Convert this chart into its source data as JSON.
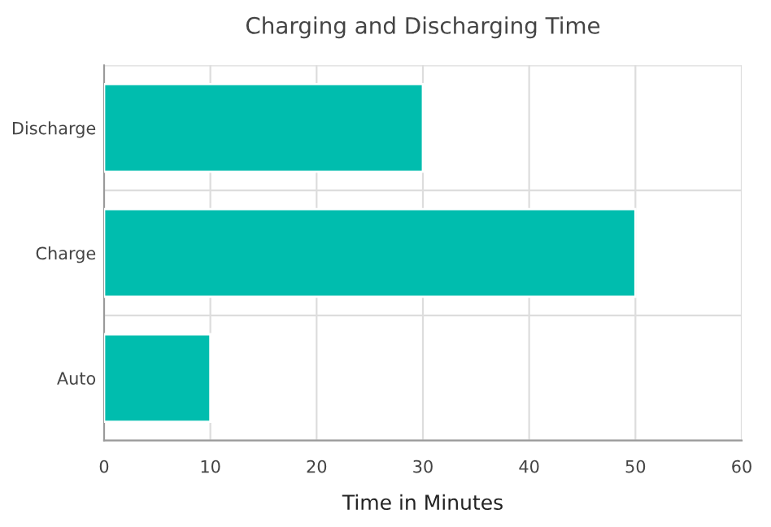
{
  "chart_data": {
    "type": "bar",
    "orientation": "horizontal",
    "title": "Charging and Discharging Time",
    "xlabel": "Time in Minutes",
    "categories": [
      "Discharge",
      "Charge",
      "Auto"
    ],
    "values": [
      30,
      50,
      10
    ],
    "color": "#00bdae",
    "xlim": [
      0,
      60
    ],
    "xticks": [
      0,
      10,
      20,
      30,
      40,
      50,
      60
    ],
    "grid": true
  }
}
